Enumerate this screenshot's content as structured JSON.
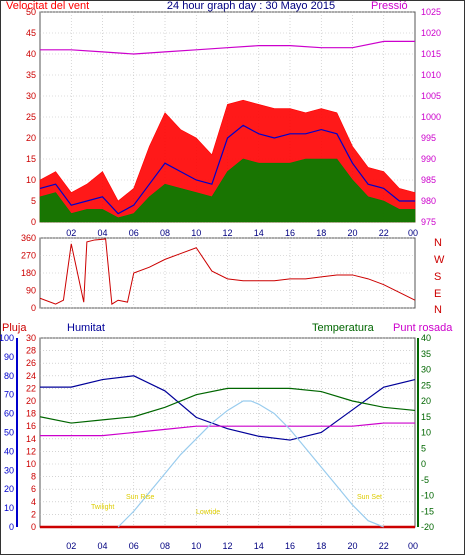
{
  "header": {
    "title": "24 hour graph day : 30 Mayo 2015",
    "wind_label": "Velocitat del vent",
    "pressure_label": "Pressió"
  },
  "labels": {
    "rain": "Pluja",
    "humidity": "Humitat",
    "temperature": "Temperatura",
    "dewpoint": "Punt rosada"
  },
  "colors": {
    "wind": "#ff0000",
    "avg": "#0000cc",
    "gust": "#008000",
    "pressure": "#cc00cc",
    "direction": "#cc0000",
    "rain": "#cc0000",
    "humidity": "#000099",
    "temperature": "#006600",
    "dewpoint": "#cc00cc",
    "sun": "#99ccee",
    "grid": "#bbbbbb",
    "axis_left": "#cc0000",
    "axis_blue": "#0000cc",
    "axis_green": "#006600",
    "axis_pressure": "#cc00cc",
    "sun_text": "#ddcc00"
  },
  "hours": [
    "02",
    "04",
    "06",
    "08",
    "10",
    "12",
    "14",
    "16",
    "18",
    "20",
    "22",
    "00"
  ],
  "compass": [
    "N",
    "W",
    "S",
    "E",
    "N"
  ],
  "sun_events": {
    "twilight_start": "Twilight",
    "sunrise": "Sun Rise",
    "solar_noon": "Lowtide",
    "sunset": "Sun Set"
  },
  "chart_data": [
    {
      "type": "line",
      "title": "24 hour graph day : 30 Mayo 2015",
      "ylabel": "Velocitat del vent",
      "y2label": "Pressió",
      "ylim": [
        0,
        50
      ],
      "y2lim": [
        975,
        1025
      ],
      "yticks": [
        0,
        5,
        10,
        15,
        20,
        25,
        30,
        35,
        40,
        45,
        50
      ],
      "y2ticks": [
        975,
        980,
        985,
        990,
        995,
        1000,
        1005,
        1010,
        1015,
        1020,
        1025
      ],
      "xlim": [
        0,
        24
      ],
      "series": [
        {
          "key": "wind",
          "color_key": "wind",
          "x": [
            0,
            1,
            2,
            3,
            4,
            5,
            6,
            7,
            8,
            9,
            10,
            11,
            12,
            13,
            14,
            15,
            16,
            17,
            18,
            19,
            20,
            21,
            22,
            23,
            24
          ],
          "values": [
            10,
            12,
            7,
            9,
            12,
            5,
            8,
            18,
            26,
            22,
            20,
            16,
            28,
            29,
            28,
            27,
            27,
            26,
            27,
            26,
            18,
            13,
            12,
            8,
            7
          ]
        },
        {
          "key": "avg",
          "color_key": "avg",
          "x": [
            0,
            1,
            2,
            3,
            4,
            5,
            6,
            7,
            8,
            9,
            10,
            11,
            12,
            13,
            14,
            15,
            16,
            17,
            18,
            19,
            20,
            21,
            22,
            23,
            24
          ],
          "values": [
            8,
            9,
            4,
            5,
            6,
            2,
            4,
            9,
            14,
            12,
            10,
            9,
            20,
            23,
            21,
            20,
            21,
            21,
            22,
            21,
            14,
            9,
            8,
            5,
            5
          ]
        },
        {
          "key": "gust",
          "color_key": "gust",
          "x": [
            0,
            1,
            2,
            3,
            4,
            5,
            6,
            7,
            8,
            9,
            10,
            11,
            12,
            13,
            14,
            15,
            16,
            17,
            18,
            19,
            20,
            21,
            22,
            23,
            24
          ],
          "values": [
            6,
            7,
            2,
            3,
            3,
            1,
            2,
            6,
            9,
            8,
            7,
            6,
            12,
            15,
            14,
            14,
            14,
            15,
            15,
            15,
            10,
            6,
            5,
            3,
            3
          ]
        },
        {
          "key": "pressure",
          "axis": "y2",
          "color_key": "pressure",
          "x": [
            0,
            2,
            4,
            6,
            8,
            10,
            12,
            14,
            16,
            18,
            20,
            22,
            24
          ],
          "values": [
            1016,
            1016,
            1015.5,
            1015,
            1015.5,
            1016,
            1016.5,
            1017,
            1017,
            1016.5,
            1016.5,
            1018,
            1018
          ]
        }
      ]
    },
    {
      "type": "line",
      "title": "",
      "ylabel": "",
      "ylim": [
        0,
        360
      ],
      "yticks": [
        0,
        90,
        180,
        270,
        360
      ],
      "xlim": [
        0,
        24
      ],
      "series": [
        {
          "key": "direction",
          "color_key": "direction",
          "x": [
            0,
            1,
            1.5,
            2,
            2.8,
            3,
            3.5,
            4.2,
            4.6,
            5,
            5.6,
            6,
            7,
            8,
            9,
            10,
            11,
            12,
            13,
            14,
            15,
            16,
            17,
            18,
            19,
            20,
            21,
            22,
            23,
            24
          ],
          "values": [
            50,
            20,
            40,
            330,
            30,
            340,
            350,
            355,
            20,
            40,
            30,
            180,
            210,
            250,
            280,
            310,
            190,
            150,
            140,
            140,
            140,
            150,
            150,
            160,
            170,
            170,
            150,
            120,
            80,
            40
          ]
        }
      ]
    },
    {
      "type": "line",
      "title": "",
      "ylabel": "Pluja",
      "ylim": [
        0,
        30
      ],
      "yticks": [
        0,
        2,
        4,
        6,
        8,
        10,
        12,
        14,
        16,
        18,
        20,
        22,
        24,
        26,
        28,
        30
      ],
      "y_hum_lim": [
        0,
        100
      ],
      "y_hum_ticks": [
        0,
        10,
        20,
        30,
        40,
        50,
        60,
        70,
        80,
        90,
        100
      ],
      "y_temp_lim": [
        -20,
        40
      ],
      "y_temp_ticks": [
        -20,
        -15,
        -10,
        -5,
        0,
        5,
        10,
        15,
        20,
        25,
        30,
        35,
        40
      ],
      "xlim": [
        0,
        24
      ],
      "series": [
        {
          "key": "rain",
          "axis": "rain",
          "color_key": "rain",
          "x": [
            0,
            24
          ],
          "values": [
            0,
            0
          ]
        },
        {
          "key": "humidity",
          "axis": "humidity",
          "color_key": "humidity",
          "x": [
            0,
            2,
            4,
            6,
            8,
            10,
            12,
            14,
            16,
            18,
            20,
            22,
            24
          ],
          "values": [
            74,
            74,
            78,
            80,
            72,
            58,
            52,
            48,
            46,
            50,
            62,
            74,
            78
          ]
        },
        {
          "key": "temperature",
          "axis": "temperature",
          "color_key": "temperature",
          "x": [
            0,
            2,
            4,
            6,
            8,
            10,
            12,
            14,
            16,
            18,
            20,
            22,
            24
          ],
          "values": [
            15,
            13,
            14,
            15,
            18,
            22,
            24,
            24,
            24,
            23,
            20,
            18,
            17
          ]
        },
        {
          "key": "dewpoint",
          "axis": "temperature",
          "color_key": "dewpoint",
          "x": [
            0,
            2,
            4,
            6,
            8,
            10,
            12,
            14,
            16,
            18,
            20,
            22,
            24
          ],
          "values": [
            9,
            9,
            9,
            10,
            11,
            12,
            12,
            12,
            12,
            12,
            12,
            13,
            13
          ]
        },
        {
          "key": "solar",
          "axis": "temperature",
          "color_key": "sun",
          "x": [
            5,
            6,
            7,
            8,
            9,
            10,
            11,
            12,
            13,
            13.5,
            14,
            15,
            16,
            17,
            18,
            19,
            20,
            21,
            22
          ],
          "values": [
            -20,
            -15,
            -9,
            -3,
            3,
            8,
            13,
            17,
            20,
            20,
            19,
            16,
            11,
            5,
            -1,
            -7,
            -13,
            -18,
            -20
          ]
        }
      ]
    }
  ]
}
